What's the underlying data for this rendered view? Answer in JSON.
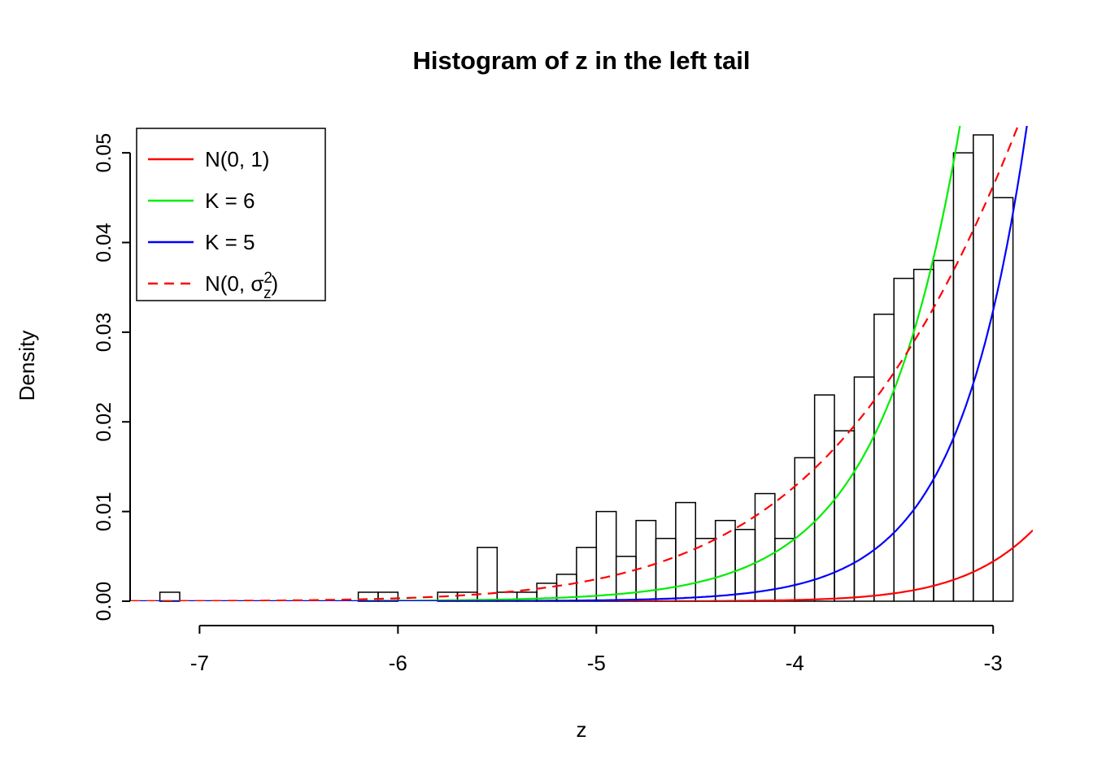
{
  "page": {
    "background": "#ffffff"
  },
  "chart_data": {
    "type": "bar",
    "subtype": "histogram_with_density_curves",
    "title": "Histogram of z in the left tail",
    "xlabel": "z",
    "ylabel": "Density",
    "xlim": [
      -7.35,
      -2.8
    ],
    "ylim": [
      0,
      0.053
    ],
    "x_ticks": [
      -7,
      -6,
      -5,
      -4,
      -3
    ],
    "x_tick_labels": [
      "-7",
      "-6",
      "-5",
      "-4",
      "-3"
    ],
    "y_ticks": [
      0.0,
      0.01,
      0.02,
      0.03,
      0.04,
      0.05
    ],
    "y_tick_labels": [
      "0.00",
      "0.01",
      "0.02",
      "0.03",
      "0.04",
      "0.05"
    ],
    "grid": false,
    "bin_width": 0.1,
    "bar_color": "#000000",
    "bar_fill": "none",
    "bars": [
      [
        -7.2,
        0.001
      ],
      [
        -6.2,
        0.001
      ],
      [
        -6.1,
        0.001
      ],
      [
        -5.8,
        0.001
      ],
      [
        -5.7,
        0.001
      ],
      [
        -5.6,
        0.006
      ],
      [
        -5.5,
        0.001
      ],
      [
        -5.4,
        0.001
      ],
      [
        -5.3,
        0.002
      ],
      [
        -5.2,
        0.003
      ],
      [
        -5.1,
        0.006
      ],
      [
        -5.0,
        0.01
      ],
      [
        -4.9,
        0.005
      ],
      [
        -4.8,
        0.009
      ],
      [
        -4.7,
        0.007
      ],
      [
        -4.6,
        0.011
      ],
      [
        -4.5,
        0.007
      ],
      [
        -4.4,
        0.009
      ],
      [
        -4.3,
        0.008
      ],
      [
        -4.2,
        0.012
      ],
      [
        -4.1,
        0.007
      ],
      [
        -4.0,
        0.016
      ],
      [
        -3.9,
        0.023
      ],
      [
        -3.8,
        0.019
      ],
      [
        -3.7,
        0.025
      ],
      [
        -3.6,
        0.032
      ],
      [
        -3.5,
        0.036
      ],
      [
        -3.4,
        0.037
      ],
      [
        -3.3,
        0.038
      ],
      [
        -3.2,
        0.05
      ],
      [
        -3.1,
        0.052
      ],
      [
        -3.0,
        0.045
      ]
    ],
    "curves": [
      {
        "name": "N(0, 1)",
        "color": "#FF0000",
        "dash": "solid",
        "model": "normal",
        "sigma": 1.0
      },
      {
        "name": "K = 6",
        "color": "#00EE00",
        "dash": "solid",
        "model": "exp",
        "A": 120,
        "s": 0.41
      },
      {
        "name": "K = 5",
        "color": "#0000FF",
        "dash": "solid",
        "model": "exp",
        "A": 189,
        "s": 0.346
      },
      {
        "name": "N(0, σz²)",
        "color": "#FF0000",
        "dash": "dashed",
        "model": "normal",
        "sigma": 1.65
      }
    ],
    "legend": {
      "position": "top-left",
      "entries": [
        {
          "label": "N(0, 1)"
        },
        {
          "label": "K = 6"
        },
        {
          "label": "K = 5"
        },
        {
          "rich": {
            "prefix": "N(0, ",
            "base": "σ",
            "sup": "2",
            "sub": "z",
            "suffix": ")"
          }
        }
      ]
    }
  }
}
